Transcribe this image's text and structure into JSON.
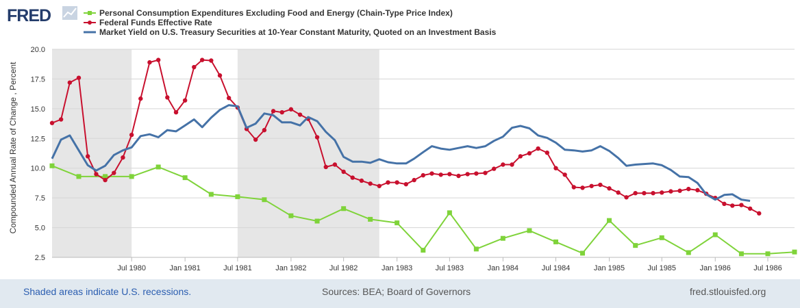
{
  "brand": {
    "logo_text": "FRED"
  },
  "colors": {
    "pce": "#7fd33a",
    "fedfunds": "#c8102e",
    "treasury": "#4572a7",
    "recession": "#e6e6e6",
    "grid": "#d5d5d5",
    "axis_text": "#333333"
  },
  "footer": {
    "left": "Shaded areas indicate U.S. recessions.",
    "center": "Sources: BEA; Board of Governors",
    "right": "fred.stlouisfed.org"
  },
  "chart_data": {
    "type": "line",
    "ylabel": "Compounded Annual Rate of Change , Percent",
    "ylim": [
      2.5,
      20.0
    ],
    "yticks": [
      "2.5",
      "5.0",
      "7.5",
      "10.0",
      "12.5",
      "15.0",
      "17.5",
      "20.0"
    ],
    "xlim": [
      "1979-10-01",
      "1986-10-01"
    ],
    "xticks": [
      {
        "label": "Jul 1980",
        "date": "1980-07-01"
      },
      {
        "label": "Jan 1981",
        "date": "1981-01-01"
      },
      {
        "label": "Jul 1981",
        "date": "1981-07-01"
      },
      {
        "label": "Jan 1982",
        "date": "1982-01-01"
      },
      {
        "label": "Jul 1982",
        "date": "1982-07-01"
      },
      {
        "label": "Jan 1983",
        "date": "1983-01-01"
      },
      {
        "label": "Jul 1983",
        "date": "1983-07-01"
      },
      {
        "label": "Jan 1984",
        "date": "1984-01-01"
      },
      {
        "label": "Jul 1984",
        "date": "1984-07-01"
      },
      {
        "label": "Jan 1985",
        "date": "1985-01-01"
      },
      {
        "label": "Jul 1985",
        "date": "1985-07-01"
      },
      {
        "label": "Jan 1986",
        "date": "1986-01-01"
      },
      {
        "label": "Jul 1986",
        "date": "1986-07-01"
      }
    ],
    "grid": true,
    "legend_position": "top-left",
    "recessions": [
      {
        "start": "1979-10-01",
        "end": "1980-07-01"
      },
      {
        "start": "1981-07-01",
        "end": "1982-11-01"
      }
    ],
    "series": [
      {
        "name": "Personal Consumption Expenditures Excluding Food and Energy (Chain-Type Price Index)",
        "key": "pce",
        "marker": "square",
        "points": [
          [
            "1979-10-01",
            10.2
          ],
          [
            "1980-01-01",
            9.3
          ],
          [
            "1980-04-01",
            9.3
          ],
          [
            "1980-07-01",
            9.3
          ],
          [
            "1980-10-01",
            10.1
          ],
          [
            "1981-01-01",
            9.2
          ],
          [
            "1981-04-01",
            7.8
          ],
          [
            "1981-07-01",
            7.6
          ],
          [
            "1981-10-01",
            7.35
          ],
          [
            "1982-01-01",
            6.0
          ],
          [
            "1982-04-01",
            5.55
          ],
          [
            "1982-07-01",
            6.6
          ],
          [
            "1982-10-01",
            5.7
          ],
          [
            "1983-01-01",
            5.4
          ],
          [
            "1983-04-01",
            3.1
          ],
          [
            "1983-07-01",
            6.25
          ],
          [
            "1983-10-01",
            3.2
          ],
          [
            "1984-01-01",
            4.1
          ],
          [
            "1984-04-01",
            4.75
          ],
          [
            "1984-07-01",
            3.8
          ],
          [
            "1984-10-01",
            2.85
          ],
          [
            "1985-01-01",
            5.6
          ],
          [
            "1985-04-01",
            3.5
          ],
          [
            "1985-07-01",
            4.15
          ],
          [
            "1985-10-01",
            2.9
          ],
          [
            "1986-01-01",
            4.4
          ],
          [
            "1986-04-01",
            2.8
          ],
          [
            "1986-07-01",
            2.8
          ],
          [
            "1986-10-01",
            2.95
          ]
        ]
      },
      {
        "name": "Federal Funds Effective Rate",
        "key": "fedfunds",
        "marker": "circle",
        "points": [
          [
            "1979-10-01",
            13.8
          ],
          [
            "1979-11-01",
            14.1
          ],
          [
            "1979-12-01",
            17.2
          ],
          [
            "1980-01-01",
            17.6
          ],
          [
            "1980-02-01",
            11.0
          ],
          [
            "1980-03-01",
            9.5
          ],
          [
            "1980-04-01",
            9.0
          ],
          [
            "1980-05-01",
            9.6
          ],
          [
            "1980-06-01",
            10.9
          ],
          [
            "1980-07-01",
            12.8
          ],
          [
            "1980-08-01",
            15.85
          ],
          [
            "1980-09-01",
            18.9
          ],
          [
            "1980-10-01",
            19.1
          ],
          [
            "1980-11-01",
            15.95
          ],
          [
            "1980-12-01",
            14.7
          ],
          [
            "1981-01-01",
            15.7
          ],
          [
            "1981-02-01",
            18.5
          ],
          [
            "1981-03-01",
            19.1
          ],
          [
            "1981-04-01",
            19.05
          ],
          [
            "1981-05-01",
            17.8
          ],
          [
            "1981-06-01",
            15.9
          ],
          [
            "1981-07-01",
            15.1
          ],
          [
            "1981-08-01",
            13.3
          ],
          [
            "1981-09-01",
            12.4
          ],
          [
            "1981-10-01",
            13.2
          ],
          [
            "1981-11-01",
            14.8
          ],
          [
            "1981-12-01",
            14.7
          ],
          [
            "1982-01-01",
            14.95
          ],
          [
            "1982-02-01",
            14.5
          ],
          [
            "1982-03-01",
            14.15
          ],
          [
            "1982-04-01",
            12.6
          ],
          [
            "1982-05-01",
            10.1
          ],
          [
            "1982-06-01",
            10.3
          ],
          [
            "1982-07-01",
            9.7
          ],
          [
            "1982-08-01",
            9.2
          ],
          [
            "1982-09-01",
            8.95
          ],
          [
            "1982-10-01",
            8.7
          ],
          [
            "1982-11-01",
            8.5
          ],
          [
            "1982-12-01",
            8.8
          ],
          [
            "1983-01-01",
            8.8
          ],
          [
            "1983-02-01",
            8.65
          ],
          [
            "1983-03-01",
            9.0
          ],
          [
            "1983-04-01",
            9.4
          ],
          [
            "1983-05-01",
            9.55
          ],
          [
            "1983-06-01",
            9.45
          ],
          [
            "1983-07-01",
            9.5
          ],
          [
            "1983-08-01",
            9.35
          ],
          [
            "1983-09-01",
            9.5
          ],
          [
            "1983-10-01",
            9.55
          ],
          [
            "1983-11-01",
            9.6
          ],
          [
            "1983-12-01",
            9.95
          ],
          [
            "1984-01-01",
            10.3
          ],
          [
            "1984-02-01",
            10.3
          ],
          [
            "1984-03-01",
            11.0
          ],
          [
            "1984-04-01",
            11.25
          ],
          [
            "1984-05-01",
            11.65
          ],
          [
            "1984-06-01",
            11.3
          ],
          [
            "1984-07-01",
            10.0
          ],
          [
            "1984-08-01",
            9.45
          ],
          [
            "1984-09-01",
            8.4
          ],
          [
            "1984-10-01",
            8.35
          ],
          [
            "1984-11-01",
            8.5
          ],
          [
            "1984-12-01",
            8.6
          ],
          [
            "1985-01-01",
            8.3
          ],
          [
            "1985-02-01",
            7.95
          ],
          [
            "1985-03-01",
            7.55
          ],
          [
            "1985-04-01",
            7.9
          ],
          [
            "1985-05-01",
            7.9
          ],
          [
            "1985-06-01",
            7.9
          ],
          [
            "1985-07-01",
            7.95
          ],
          [
            "1985-08-01",
            8.05
          ],
          [
            "1985-09-01",
            8.1
          ],
          [
            "1985-10-01",
            8.25
          ],
          [
            "1985-11-01",
            8.15
          ],
          [
            "1985-12-01",
            7.85
          ],
          [
            "1986-01-01",
            7.5
          ],
          [
            "1986-02-01",
            7.0
          ],
          [
            "1986-03-01",
            6.85
          ],
          [
            "1986-04-01",
            6.9
          ],
          [
            "1986-05-01",
            6.6
          ],
          [
            "1986-06-01",
            6.2
          ]
        ]
      },
      {
        "name": "Market Yield on U.S. Treasury Securities at 10-Year Constant Maturity, Quoted on an Investment Basis",
        "key": "treasury",
        "marker": "none",
        "points": [
          [
            "1979-10-01",
            10.8
          ],
          [
            "1979-11-01",
            12.4
          ],
          [
            "1979-12-01",
            12.75
          ],
          [
            "1980-01-01",
            11.5
          ],
          [
            "1980-02-01",
            10.25
          ],
          [
            "1980-03-01",
            9.8
          ],
          [
            "1980-04-01",
            10.2
          ],
          [
            "1980-05-01",
            11.1
          ],
          [
            "1980-06-01",
            11.5
          ],
          [
            "1980-07-01",
            11.75
          ],
          [
            "1980-08-01",
            12.7
          ],
          [
            "1980-09-01",
            12.85
          ],
          [
            "1980-10-01",
            12.6
          ],
          [
            "1980-11-01",
            13.2
          ],
          [
            "1980-12-01",
            13.1
          ],
          [
            "1981-01-01",
            13.6
          ],
          [
            "1981-02-01",
            14.1
          ],
          [
            "1981-03-01",
            13.45
          ],
          [
            "1981-04-01",
            14.25
          ],
          [
            "1981-05-01",
            14.9
          ],
          [
            "1981-06-01",
            15.3
          ],
          [
            "1981-07-01",
            15.2
          ],
          [
            "1981-08-01",
            13.4
          ],
          [
            "1981-09-01",
            13.75
          ],
          [
            "1981-10-01",
            14.6
          ],
          [
            "1981-11-01",
            14.45
          ],
          [
            "1981-12-01",
            13.85
          ],
          [
            "1982-01-01",
            13.85
          ],
          [
            "1982-02-01",
            13.6
          ],
          [
            "1982-03-01",
            14.3
          ],
          [
            "1982-04-01",
            13.95
          ],
          [
            "1982-05-01",
            13.05
          ],
          [
            "1982-06-01",
            12.35
          ],
          [
            "1982-07-01",
            10.95
          ],
          [
            "1982-08-01",
            10.55
          ],
          [
            "1982-09-01",
            10.55
          ],
          [
            "1982-10-01",
            10.45
          ],
          [
            "1982-11-01",
            10.75
          ],
          [
            "1982-12-01",
            10.5
          ],
          [
            "1983-01-01",
            10.4
          ],
          [
            "1983-02-01",
            10.4
          ],
          [
            "1983-03-01",
            10.8
          ],
          [
            "1983-04-01",
            11.35
          ],
          [
            "1983-05-01",
            11.85
          ],
          [
            "1983-06-01",
            11.65
          ],
          [
            "1983-07-01",
            11.55
          ],
          [
            "1983-08-01",
            11.7
          ],
          [
            "1983-09-01",
            11.85
          ],
          [
            "1983-10-01",
            11.7
          ],
          [
            "1983-11-01",
            11.85
          ],
          [
            "1983-12-01",
            12.3
          ],
          [
            "1984-01-01",
            12.65
          ],
          [
            "1984-02-01",
            13.4
          ],
          [
            "1984-03-01",
            13.55
          ],
          [
            "1984-04-01",
            13.35
          ],
          [
            "1984-05-01",
            12.75
          ],
          [
            "1984-06-01",
            12.55
          ],
          [
            "1984-07-01",
            12.15
          ],
          [
            "1984-08-01",
            11.55
          ],
          [
            "1984-09-01",
            11.5
          ],
          [
            "1984-10-01",
            11.4
          ],
          [
            "1984-11-01",
            11.5
          ],
          [
            "1984-12-01",
            11.85
          ],
          [
            "1985-01-01",
            11.45
          ],
          [
            "1985-02-01",
            10.85
          ],
          [
            "1985-03-01",
            10.2
          ],
          [
            "1985-04-01",
            10.3
          ],
          [
            "1985-05-01",
            10.35
          ],
          [
            "1985-06-01",
            10.4
          ],
          [
            "1985-07-01",
            10.25
          ],
          [
            "1985-08-01",
            9.85
          ],
          [
            "1985-09-01",
            9.3
          ],
          [
            "1985-10-01",
            9.25
          ],
          [
            "1985-11-01",
            8.75
          ],
          [
            "1985-12-01",
            7.8
          ],
          [
            "1986-01-01",
            7.35
          ],
          [
            "1986-02-01",
            7.75
          ],
          [
            "1986-03-01",
            7.8
          ],
          [
            "1986-04-01",
            7.35
          ],
          [
            "1986-05-01",
            7.25
          ]
        ]
      }
    ]
  }
}
